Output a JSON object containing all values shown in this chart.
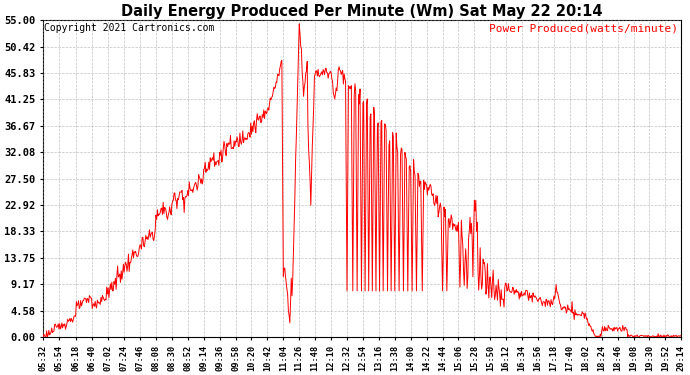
{
  "title": "Daily Energy Produced Per Minute (Wm) Sat May 22 20:14",
  "copyright": "Copyright 2021 Cartronics.com",
  "legend_label": "Power Produced(watts/minute)",
  "line_color": "red",
  "background_color": "#ffffff",
  "grid_color": "#999999",
  "y_ticks": [
    0.0,
    4.58,
    9.17,
    13.75,
    18.33,
    22.92,
    27.5,
    32.08,
    36.67,
    41.25,
    45.83,
    50.42,
    55.0
  ],
  "y_min": 0.0,
  "y_max": 55.0,
  "x_tick_labels": [
    "05:32",
    "05:54",
    "06:18",
    "06:40",
    "07:02",
    "07:24",
    "07:46",
    "08:08",
    "08:30",
    "08:52",
    "09:14",
    "09:36",
    "09:58",
    "10:20",
    "10:42",
    "11:04",
    "11:26",
    "11:48",
    "12:10",
    "12:32",
    "12:54",
    "13:16",
    "13:38",
    "14:00",
    "14:22",
    "14:44",
    "15:06",
    "15:28",
    "15:50",
    "16:12",
    "16:34",
    "16:56",
    "17:18",
    "17:40",
    "18:02",
    "18:24",
    "18:46",
    "19:08",
    "19:30",
    "19:52",
    "20:14"
  ]
}
